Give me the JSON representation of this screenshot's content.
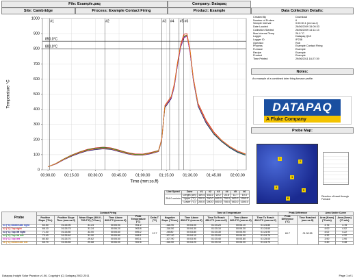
{
  "header": {
    "file": "File: Example.paq",
    "company": "Company: Datapaq",
    "site": "Site: Cambridge",
    "process": "Process: Example Contact Firing",
    "product": "Product: Example",
    "details_title": "Data Collection Details:"
  },
  "details": [
    [
      "Created By",
      "Download"
    ],
    [
      "Number of Probes",
      "6"
    ],
    [
      "Sample Interval",
      "0:00:00.1 (mm:ss.f)"
    ],
    [
      "Date Loaded",
      "26/06/2009 15:00:33"
    ],
    [
      "Collection Started",
      "26/06/2009 14:11:13"
    ],
    [
      "Max Internal Temp",
      "26.0 °C"
    ],
    [
      "Logger",
      "Datapaq Q18"
    ],
    [
      "Logger ID",
      "IP238"
    ],
    [
      "Operator",
      "Rob"
    ],
    [
      "Process",
      "Example Contact Firing"
    ],
    [
      "Furnace",
      "Example"
    ],
    [
      "Recipe",
      "Example"
    ],
    [
      "Product",
      "Example"
    ],
    [
      "Time Printed",
      "29/06/2011 16:27:39"
    ]
  ],
  "notes": {
    "title": "Notes:",
    "text": "An example of a combined drier firing furnace profile."
  },
  "logo": {
    "brand": "DATAPAQ",
    "tagline": "A Fluke Company"
  },
  "probe_map": {
    "title": "Probe Map:",
    "labels": [
      "1",
      "2",
      "3",
      "4",
      "5",
      "6"
    ],
    "direction": "Direction of travel through Furnace"
  },
  "chart_data": {
    "type": "line",
    "y_label": "Temperature °C",
    "x_label": "Time (mm:ss.ff)",
    "x": [
      0,
      5,
      10,
      15,
      20,
      25,
      30,
      35,
      40,
      45,
      50,
      55,
      60,
      65,
      70,
      72,
      74,
      76,
      78,
      80,
      82,
      84,
      86,
      88,
      90,
      92,
      95,
      100,
      105,
      110,
      115,
      120,
      125
    ],
    "series": [
      {
        "color": "#1f3fd0",
        "values": [
          20,
          40,
          70,
          95,
          115,
          130,
          140,
          145,
          140,
          125,
          110,
          100,
          100,
          110,
          125,
          200,
          420,
          450,
          480,
          560,
          700,
          820,
          880,
          890,
          780,
          600,
          430,
          320,
          240,
          190,
          150,
          120,
          100
        ]
      },
      {
        "color": "#d81e1e",
        "values": [
          20,
          42,
          72,
          98,
          118,
          135,
          145,
          150,
          145,
          130,
          115,
          105,
          104,
          114,
          128,
          205,
          425,
          455,
          485,
          570,
          710,
          830,
          895,
          900,
          790,
          610,
          440,
          330,
          250,
          195,
          155,
          125,
          105
        ]
      },
      {
        "color": "#101060",
        "values": [
          20,
          38,
          66,
          90,
          110,
          125,
          133,
          138,
          134,
          120,
          106,
          96,
          96,
          106,
          120,
          195,
          410,
          440,
          470,
          550,
          690,
          810,
          870,
          885,
          770,
          590,
          420,
          310,
          235,
          185,
          145,
          115,
          96
        ]
      },
      {
        "color": "#1e9a2a",
        "values": [
          20,
          41,
          71,
          96,
          116,
          132,
          142,
          147,
          142,
          127,
          112,
          102,
          101,
          111,
          126,
          200,
          415,
          448,
          478,
          558,
          698,
          818,
          878,
          888,
          775,
          595,
          425,
          315,
          238,
          188,
          148,
          118,
          98
        ]
      },
      {
        "color": "#d020c8",
        "values": [
          20,
          39,
          68,
          93,
          113,
          128,
          137,
          142,
          137,
          123,
          108,
          98,
          98,
          108,
          122,
          198,
          418,
          446,
          476,
          555,
          695,
          815,
          875,
          882,
          772,
          595,
          428,
          318,
          242,
          192,
          152,
          122,
          102
        ]
      },
      {
        "color": "#e08a10",
        "values": [
          20,
          40,
          69,
          94,
          114,
          129,
          138,
          143,
          138,
          124,
          109,
          99,
          99,
          109,
          123,
          199,
          420,
          452,
          482,
          565,
          705,
          825,
          885,
          892,
          785,
          605,
          435,
          325,
          245,
          195,
          155,
          125,
          103
        ]
      }
    ],
    "xlim": [
      -3.5,
      125.5
    ],
    "ylim": [
      0,
      1000
    ],
    "xticks": [
      {
        "value": 0,
        "label": "00:00.00"
      },
      {
        "value": 15,
        "label": "00:15.00"
      },
      {
        "value": 30,
        "label": "00:30.00"
      },
      {
        "value": 45,
        "label": "00:45.00"
      },
      {
        "value": 60,
        "label": "01:00.00"
      },
      {
        "value": 75,
        "label": "01:15.00"
      },
      {
        "value": 90,
        "label": "01:30.00"
      },
      {
        "value": 105,
        "label": "01:45.00"
      },
      {
        "value": 120,
        "label": "02:00.00"
      }
    ],
    "yticks": [
      0,
      100,
      200,
      300,
      400,
      500,
      600,
      700,
      800,
      900,
      1000
    ],
    "grid": true,
    "reference_lines": [
      {
        "value": 850,
        "label": "850.0°C"
      },
      {
        "value": 800,
        "label": "800.0°C"
      }
    ],
    "zone_markers": [
      {
        "value": 1,
        "label": "#1"
      },
      {
        "value": 36,
        "label": "#2"
      },
      {
        "value": 72,
        "label": "#3"
      },
      {
        "value": 77,
        "label": "#4"
      },
      {
        "value": 83,
        "label": "#5"
      },
      {
        "value": 86,
        "label": "#6"
      }
    ]
  },
  "zones": {
    "line_speed_label": "Line Speed",
    "line_speed": "254.0 cm/min",
    "header": [
      "Zone",
      "#1",
      "#2",
      "#3",
      "#4",
      "#5",
      "#6"
    ],
    "rows": [
      [
        "Length (cm)",
        "149.4",
        "152.2",
        "22.2",
        "22.6",
        "11.7",
        "10.3"
      ],
      [
        "Upper (°C)",
        "200.0",
        "200.0",
        "600.0",
        "750.0",
        "800.0",
        "1000.0"
      ],
      [
        "Lower (°C)",
        "200.0",
        "200.0",
        "600.0",
        "750.0",
        "800.0",
        "1000.0"
      ]
    ]
  },
  "table": {
    "probe_header": "Probe",
    "groups": [
      "Contact Firing",
      "Time at Temperature",
      "Peak Difference",
      "Area Under Curve"
    ],
    "columns": [
      "Positive Slope (°C/s)",
      "Positive Slope Time (mm:ss.ff)",
      "Mean Slope (300.0 - 700.0°C) (°C/sec)",
      "Time Above 800.0°C (mm:ss.ff)",
      "Peak Temperature (°C)",
      "Delta T (°C)",
      "Negative Slope (°C/sec)",
      "Time Above 850.0°C (mm:ss.ff)",
      "Time To Reach 850.0°C (mm:ss.ff)",
      "Time Above 800.0°C (mm:ss.ff)",
      "Time To Reach 800.0°C (mm:ss.ff)",
      "Peak Difference (°C)",
      "Time Reached (mm:ss.ff)",
      "Area (Kmm) (°C.min)",
      "Area (Kmm) (°C.min)"
    ],
    "delta_t": "12.7",
    "peak_difference": "60.7",
    "time_reached": "01:30.55",
    "rows": [
      [
        "#1 (°C) Underside right",
        "63.50",
        "01:26.90",
        "31.24",
        "00:05.90",
        "901.2",
        "-116.90",
        "00:04.00",
        "01:25.20",
        "00:06.10",
        "01:24.80",
        "3.76",
        "3.78"
      ],
      [
        "#2 (°C) Top right",
        "66.10",
        "01:26.75",
        "31.24",
        "00:06.20",
        "905.8",
        "-118.50",
        "00:04.30",
        "01:25.10",
        "00:06.30",
        "01:24.60",
        "4.00",
        "4.02"
      ],
      [
        "#3 (°C) Top lift right",
        "71.40",
        "01:26.80",
        "33.00",
        "00:05.60",
        "895.2",
        "-98.80",
        "00:03.80",
        "01:25.30",
        "00:05.90",
        "01:24.90",
        "4.02",
        "4.22"
      ],
      [
        "#4 (°C) Top lift left",
        "73.40",
        "01:26.40",
        "31.90",
        "00:05.80",
        "898.1",
        "-107.40",
        "00:04.10",
        "01:25.00",
        "00:06.00",
        "01:24.70",
        "4.32",
        "4.32"
      ],
      [
        "#5 (°C) Top left",
        "80.60",
        "01:26.70",
        "29.62",
        "00:05.50",
        "893.1",
        "-107.90",
        "00:03.90",
        "01:25.40",
        "00:05.80",
        "01:25.00",
        "3.90",
        "3.90"
      ],
      [
        "#6 (°C) Underside left",
        "65.70",
        "01:26.85",
        "29.68",
        "00:06.00",
        "902.6",
        "-116.50",
        "00:04.20",
        "01:25.10",
        "00:06.20",
        "01:24.70",
        "3.40",
        "3.48"
      ]
    ]
  },
  "footer": {
    "left": "Datapaq Insight Solar Paradox v1.06, Copyright (C) Datapaq 2002-2011",
    "right": "Page 1 of 1"
  }
}
